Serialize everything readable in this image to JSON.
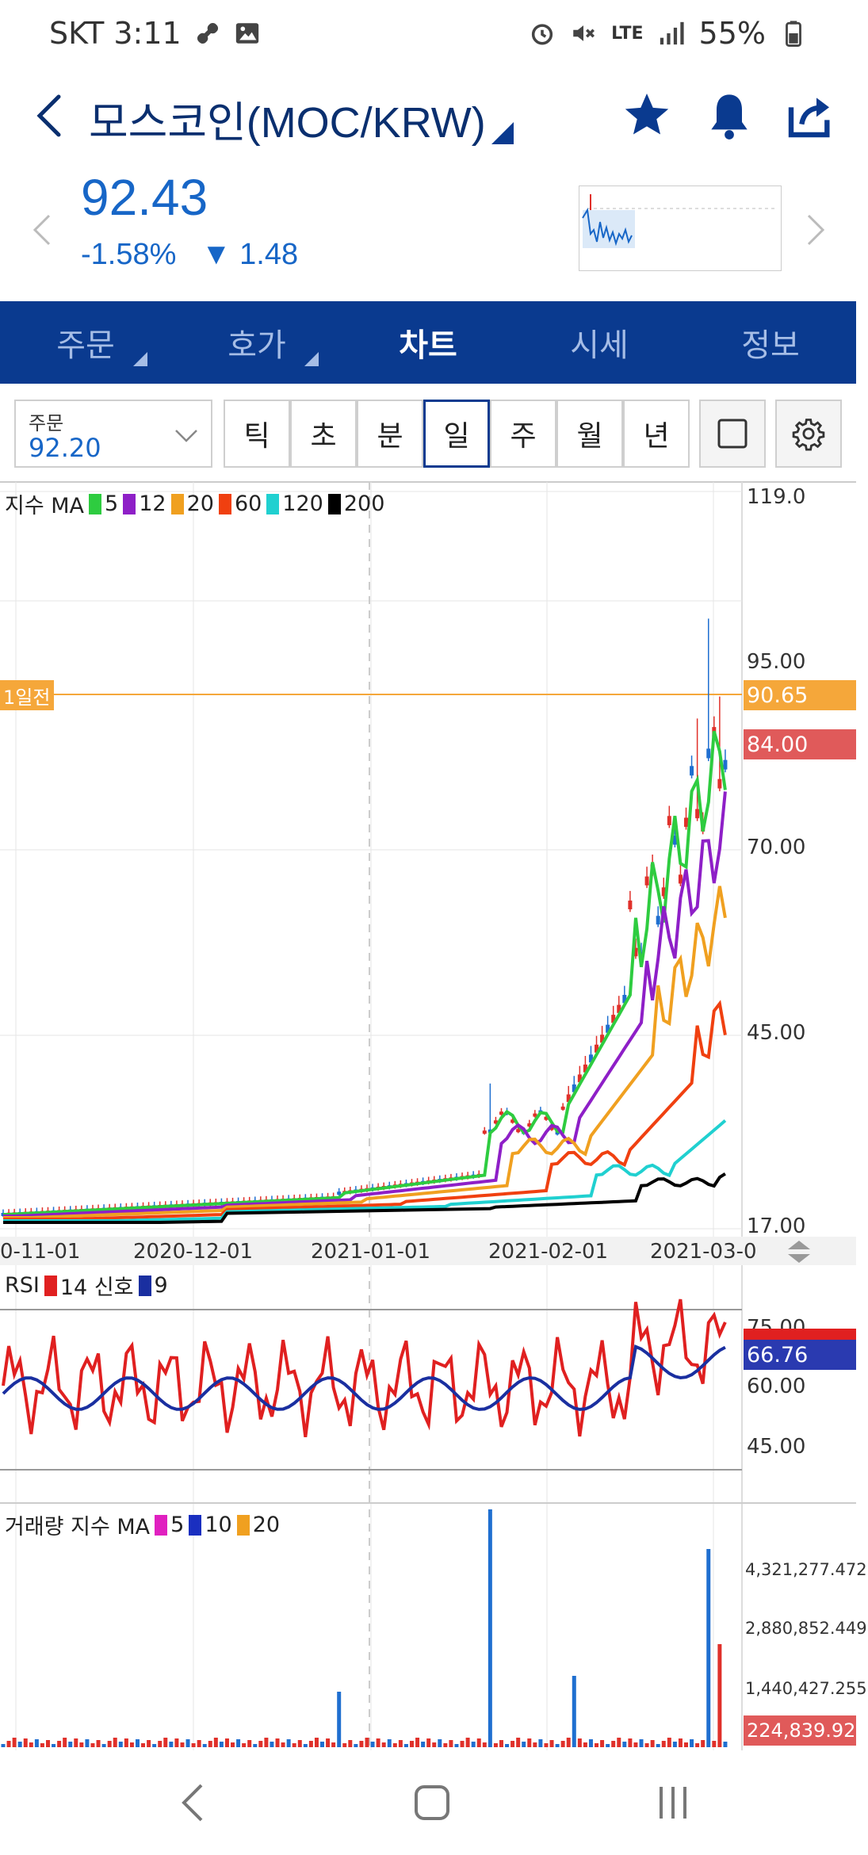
{
  "status": {
    "carrier_time": "SKT 3:11",
    "battery": "55%",
    "network": "LTE"
  },
  "header": {
    "title": "모스코인(MOC/KRW)",
    "icons": [
      "star-icon",
      "bell-icon",
      "share-icon"
    ]
  },
  "quote": {
    "price": "92.43",
    "change_pct": "-1.58%",
    "change_abs": "▼ 1.48"
  },
  "tabs": [
    {
      "label": "주문",
      "active": false,
      "has_menu": true
    },
    {
      "label": "호가",
      "active": false,
      "has_menu": true
    },
    {
      "label": "차트",
      "active": true,
      "has_menu": false
    },
    {
      "label": "시세",
      "active": false,
      "has_menu": false
    },
    {
      "label": "정보",
      "active": false,
      "has_menu": false
    }
  ],
  "toolbar": {
    "order_label": "주문",
    "order_value": "92.20",
    "periods": [
      "틱",
      "초",
      "분",
      "일",
      "주",
      "월",
      "년"
    ],
    "active_period": "일"
  },
  "price_chart": {
    "legend_prefix": "지수 MA",
    "ma": [
      {
        "period": "5",
        "color": "#2ecc40"
      },
      {
        "period": "12",
        "color": "#8e1fc7"
      },
      {
        "period": "20",
        "color": "#f0a020"
      },
      {
        "period": "60",
        "color": "#f04010"
      },
      {
        "period": "120",
        "color": "#20d0d0"
      },
      {
        "period": "200",
        "color": "#000000"
      }
    ],
    "y_ticks": [
      "119.0",
      "95.00",
      "70.00",
      "45.00",
      "17.00"
    ],
    "ref_line_label": "1일전",
    "ref_line_value": "90.65",
    "current_value": "84.00",
    "dates": [
      "0-11-01",
      "2020-12-01",
      "2021-01-01",
      "2021-02-01",
      "2021-03-0"
    ]
  },
  "rsi_chart": {
    "legend_prefix": "RSI",
    "legend_items": [
      {
        "label": "14 신호",
        "color": "#e02020"
      },
      {
        "label": "9",
        "color": "#1a2fa0"
      }
    ],
    "y_ticks": [
      "75.00",
      "60.00",
      "45.00"
    ],
    "current_signal": "66.76"
  },
  "volume_chart": {
    "legend_prefix": "거래량 지수 MA",
    "legend_items": [
      {
        "label": "5",
        "color": "#e020c0"
      },
      {
        "label": "10",
        "color": "#1a2fc0"
      },
      {
        "label": "20",
        "color": "#f0a020"
      }
    ],
    "y_ticks": [
      "4,321,277.472",
      "2,880,852.449",
      "1,440,427.255"
    ],
    "current_value": "224,839.920"
  },
  "colors": {
    "brand_navy": "#0a3a8f",
    "price_blue": "#1766c7",
    "candle_up": "#e0302a",
    "candle_down": "#1f6fd0",
    "ref_orange": "#f5a73a",
    "current_red": "#e05a5a"
  }
}
